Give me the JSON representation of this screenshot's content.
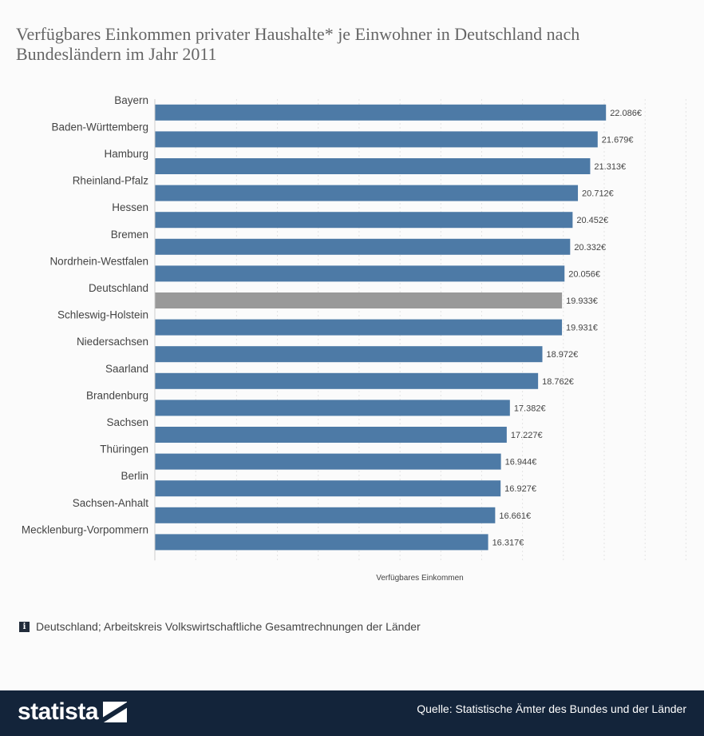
{
  "title": "Verfügbares Einkommen privater Haushalte* je Einwohner in Deutschland nach Bundesländern im Jahr 2011",
  "chart_data": {
    "type": "bar",
    "orientation": "horizontal",
    "title": "Verfügbares Einkommen privater Haushalte* je Einwohner in Deutschland nach Bundesländern im Jahr 2011",
    "xlabel": "Verfügbares Einkommen",
    "ylabel": "",
    "xlim": [
      0,
      22000
    ],
    "grid": true,
    "colors": {
      "default": "#4d7aa6",
      "highlight": "#999999"
    },
    "categories": [
      "Bayern",
      "Baden-Württemberg",
      "Hamburg",
      "Rheinland-Pfalz",
      "Hessen",
      "Bremen",
      "Nordrhein-Westfalen",
      "Deutschland",
      "Schleswig-Holstein",
      "Niedersachsen",
      "Saarland",
      "Brandenburg",
      "Sachsen",
      "Thüringen",
      "Berlin",
      "Sachsen-Anhalt",
      "Mecklenburg-Vorpommern"
    ],
    "values": [
      22086,
      21679,
      21313,
      20712,
      20452,
      20332,
      20056,
      19933,
      19931,
      18972,
      18762,
      17382,
      17227,
      16944,
      16927,
      16661,
      16317
    ],
    "value_labels": [
      "22.086€",
      "21.679€",
      "21.313€",
      "20.712€",
      "20.452€",
      "20.332€",
      "20.056€",
      "19.933€",
      "19.931€",
      "18.972€",
      "18.762€",
      "17.382€",
      "17.227€",
      "16.944€",
      "16.927€",
      "16.661€",
      "16.317€"
    ],
    "highlight_category": "Deutschland"
  },
  "source_note": "Deutschland; Arbeitskreis Volkswirtschaftliche Gesamtrechnungen der Länder",
  "info_icon": "i",
  "footer": {
    "logo": "statista",
    "source": "Quelle: Statistische Ämter des Bundes und der Länder"
  }
}
